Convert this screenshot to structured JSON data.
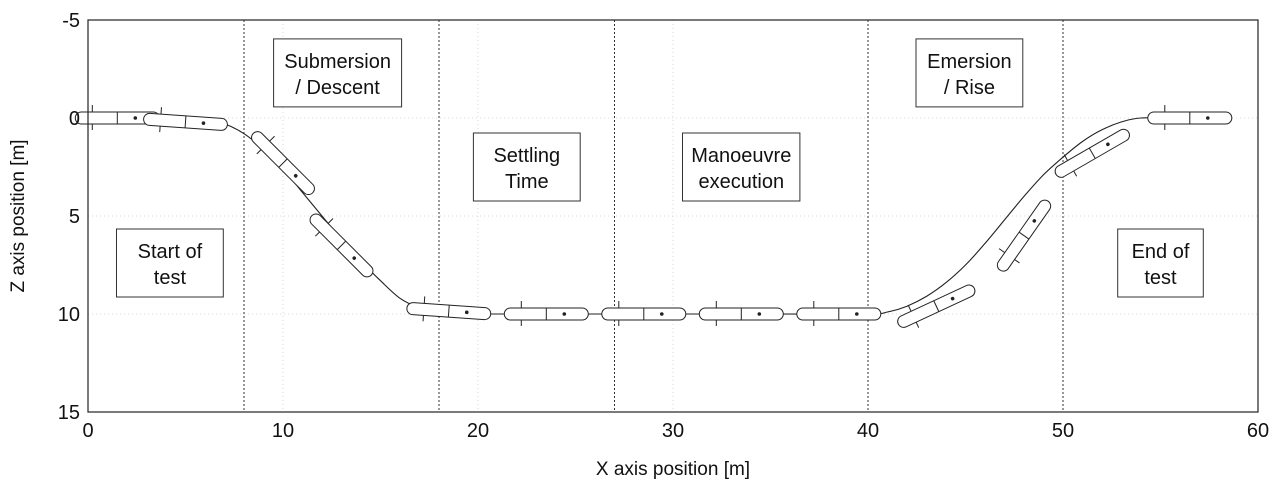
{
  "chart_data": {
    "type": "line",
    "xlabel": "X axis position [m]",
    "ylabel": "Z axis position [m]",
    "xlim": [
      0,
      60
    ],
    "ylim": [
      -5,
      15
    ],
    "y_inverted": true,
    "grid": true,
    "x_ticks": [
      "0",
      "10",
      "20",
      "30",
      "40",
      "50",
      "60"
    ],
    "y_ticks": [
      "-5",
      "0",
      "5",
      "10",
      "15"
    ],
    "x_tick_values": [
      0,
      10,
      20,
      30,
      40,
      50,
      60
    ],
    "y_tick_values": [
      -5,
      0,
      5,
      10,
      15
    ],
    "phase_boundaries_x": [
      8,
      18,
      27,
      40,
      50
    ],
    "phases": [
      {
        "lines": [
          "Start of",
          "test"
        ],
        "x": 4.2,
        "z": 7.4
      },
      {
        "lines": [
          "Submersion",
          "/ Descent"
        ],
        "x": 12.8,
        "z": -2.3
      },
      {
        "lines": [
          "Settling",
          "Time"
        ],
        "x": 22.5,
        "z": 2.5
      },
      {
        "lines": [
          "Manoeuvre",
          "execution"
        ],
        "x": 33.5,
        "z": 2.5
      },
      {
        "lines": [
          "Emersion",
          "/ Rise"
        ],
        "x": 45.2,
        "z": -2.3
      },
      {
        "lines": [
          "End of",
          "test"
        ],
        "x": 55,
        "z": 7.4
      }
    ],
    "trajectory": {
      "x": [
        0,
        2,
        4,
        6,
        7,
        8,
        9,
        10,
        11,
        12,
        13,
        14,
        15,
        16,
        17,
        18,
        19,
        20,
        25,
        30,
        35,
        40,
        41,
        42,
        43,
        44,
        45,
        46,
        47,
        48,
        49,
        50,
        51,
        52,
        53,
        54,
        56,
        58
      ],
      "z": [
        0,
        0,
        0,
        0.1,
        0.3,
        0.8,
        1.6,
        2.6,
        3.8,
        5.0,
        6.2,
        7.3,
        8.3,
        9.2,
        9.7,
        10.0,
        10.0,
        10.0,
        10.0,
        10.0,
        10.0,
        10.0,
        9.9,
        9.6,
        9.1,
        8.4,
        7.5,
        6.4,
        5.2,
        4.0,
        2.9,
        2.0,
        1.2,
        0.6,
        0.2,
        0,
        0,
        0
      ]
    },
    "vehicles": [
      {
        "x": 1.5,
        "z": 0.0,
        "pitch": 0
      },
      {
        "x": 5.0,
        "z": 0.2,
        "pitch": 4
      },
      {
        "x": 10.0,
        "z": 2.3,
        "pitch": 45
      },
      {
        "x": 13.0,
        "z": 6.5,
        "pitch": 45
      },
      {
        "x": 18.5,
        "z": 9.85,
        "pitch": 4
      },
      {
        "x": 23.5,
        "z": 10.0,
        "pitch": 0
      },
      {
        "x": 28.5,
        "z": 10.0,
        "pitch": 0
      },
      {
        "x": 33.5,
        "z": 10.0,
        "pitch": 0
      },
      {
        "x": 38.5,
        "z": 10.0,
        "pitch": 0
      },
      {
        "x": 43.5,
        "z": 9.6,
        "pitch": -25
      },
      {
        "x": 48.0,
        "z": 6.0,
        "pitch": -55
      },
      {
        "x": 51.5,
        "z": 1.8,
        "pitch": -30
      },
      {
        "x": 56.5,
        "z": 0.0,
        "pitch": 0
      }
    ]
  }
}
